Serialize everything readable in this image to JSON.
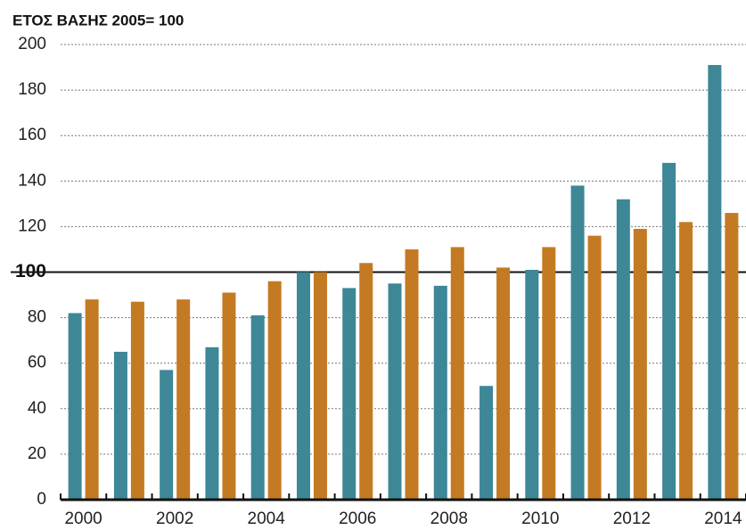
{
  "chart_data": {
    "type": "bar",
    "title": "ΕΤΟΣ ΒΑΣΗΣ 2005= 100",
    "categories": [
      "2000",
      null,
      "2002",
      null,
      "2004",
      null,
      "2006",
      null,
      "2008",
      null,
      "2010",
      null,
      "2012",
      null,
      "2014"
    ],
    "series": [
      {
        "color": "#3d8796",
        "values": [
          82,
          65,
          57,
          67,
          81,
          100,
          93,
          95,
          94,
          50,
          101,
          138,
          132,
          148,
          191
        ]
      },
      {
        "color": "#c47a22",
        "values": [
          88,
          87,
          88,
          91,
          96,
          100,
          104,
          110,
          111,
          102,
          111,
          116,
          119,
          122,
          126
        ]
      }
    ],
    "ylim": [
      0,
      200
    ],
    "yticks": [
      0,
      20,
      40,
      60,
      80,
      100,
      120,
      140,
      160,
      180,
      200
    ],
    "grid": true,
    "baseline": 100
  }
}
